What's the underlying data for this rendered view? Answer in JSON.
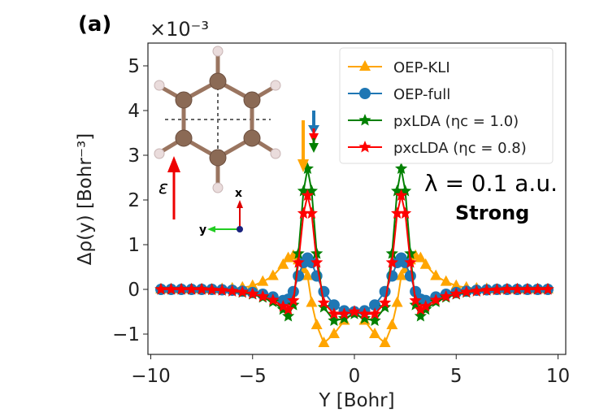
{
  "panel_label": "(a)",
  "annotation_lambda": "λ = 0.1 a.u.",
  "annotation_regime": "Strong",
  "inset": {
    "field_label": "ε",
    "axis_x": "x",
    "axis_y": "y"
  },
  "chart_data": {
    "type": "line",
    "title": "",
    "xlabel": "Y [Bohr]",
    "ylabel": "Δρ(y) [Bohr⁻³]",
    "y_scale_factor": "×10⁻³",
    "xlim": [
      -10.2,
      10.4
    ],
    "ylim": [
      -1.5,
      5.5
    ],
    "xticks": [
      -10,
      -5,
      0,
      5,
      10
    ],
    "xtick_labels": [
      "−10",
      "−5",
      "0",
      "5",
      "10"
    ],
    "yticks": [
      -1,
      0,
      1,
      2,
      3,
      4,
      5
    ],
    "ytick_labels": [
      "−1",
      "0",
      "1",
      "2",
      "3",
      "4",
      "5"
    ],
    "grid": false,
    "legend_position": "top-right",
    "x": [
      -9.5,
      -9,
      -8.5,
      -8,
      -7.5,
      -7,
      -6.5,
      -6,
      -5.5,
      -5,
      -4.5,
      -4,
      -3.5,
      -3.25,
      -3,
      -2.75,
      -2.5,
      -2.3,
      -2.1,
      -1.85,
      -1.5,
      -1,
      -0.5,
      0,
      0.5,
      1,
      1.5,
      1.85,
      2.1,
      2.3,
      2.5,
      2.75,
      3,
      3.25,
      3.5,
      4,
      4.5,
      5,
      5.5,
      6,
      6.5,
      7,
      7.5,
      8,
      8.5,
      9,
      9.5
    ],
    "series": [
      {
        "name": "OEP-KLI",
        "color": "#ffa500",
        "marker": "triangle",
        "values": [
          0,
          0,
          0,
          0,
          0,
          0,
          0.01,
          0.02,
          0.04,
          0.08,
          0.17,
          0.3,
          0.55,
          0.7,
          0.75,
          0.65,
          0.45,
          0.3,
          -0.3,
          -0.8,
          -1.2,
          -1.0,
          -0.7,
          -0.5,
          -0.7,
          -1.0,
          -1.2,
          -0.8,
          -0.3,
          0.3,
          0.45,
          0.65,
          0.75,
          0.7,
          0.55,
          0.3,
          0.17,
          0.08,
          0.04,
          0.02,
          0.01,
          0,
          0,
          0,
          0,
          0,
          0
        ]
      },
      {
        "name": "OEP-full",
        "color": "#1f77b4",
        "marker": "circle",
        "values": [
          0,
          0,
          0,
          0,
          0,
          0,
          -0.01,
          -0.02,
          -0.04,
          -0.07,
          -0.11,
          -0.17,
          -0.25,
          -0.22,
          -0.05,
          0.3,
          0.6,
          0.7,
          0.6,
          0.3,
          -0.05,
          -0.35,
          -0.48,
          -0.5,
          -0.48,
          -0.35,
          -0.05,
          0.3,
          0.6,
          0.7,
          0.6,
          0.3,
          -0.05,
          -0.22,
          -0.25,
          -0.17,
          -0.11,
          -0.07,
          -0.04,
          -0.02,
          -0.01,
          0,
          0,
          0,
          0,
          0,
          0
        ]
      },
      {
        "name": "pxLDA (ηc = 1.0)",
        "color": "#008000",
        "marker": "star",
        "values": [
          0,
          0,
          0,
          0,
          0,
          -0.01,
          -0.02,
          -0.04,
          -0.07,
          -0.11,
          -0.18,
          -0.28,
          -0.45,
          -0.6,
          -0.35,
          0.8,
          2.2,
          2.7,
          2.2,
          0.8,
          -0.4,
          -0.7,
          -0.65,
          -0.55,
          -0.65,
          -0.7,
          -0.4,
          0.8,
          2.2,
          2.7,
          2.2,
          0.8,
          -0.35,
          -0.6,
          -0.45,
          -0.28,
          -0.18,
          -0.11,
          -0.07,
          -0.04,
          -0.02,
          -0.01,
          0,
          0,
          0,
          0,
          0
        ]
      },
      {
        "name": "pxcLDA (ηc = 0.8)",
        "color": "#ff0000",
        "marker": "star",
        "values": [
          0,
          0,
          0,
          0,
          0,
          -0.01,
          -0.02,
          -0.04,
          -0.06,
          -0.1,
          -0.16,
          -0.24,
          -0.38,
          -0.45,
          -0.25,
          0.6,
          1.7,
          2.1,
          1.7,
          0.6,
          -0.3,
          -0.55,
          -0.55,
          -0.5,
          -0.55,
          -0.55,
          -0.3,
          0.6,
          1.7,
          2.1,
          1.7,
          0.6,
          -0.25,
          -0.45,
          -0.38,
          -0.24,
          -0.16,
          -0.1,
          -0.06,
          -0.04,
          -0.02,
          -0.01,
          0,
          0,
          0,
          0,
          0
        ]
      }
    ]
  }
}
